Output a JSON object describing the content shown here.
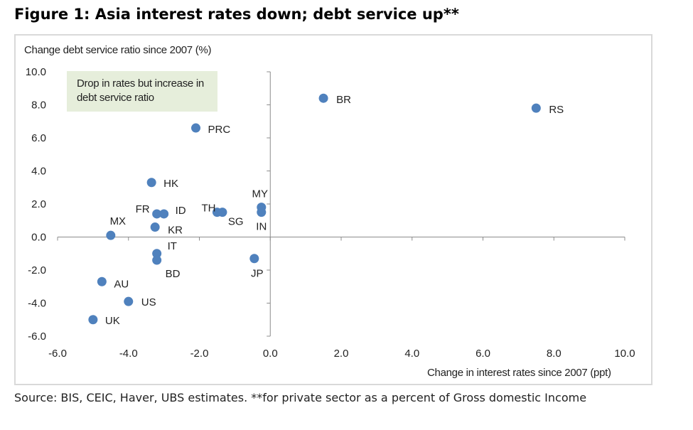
{
  "title": "Figure 1: Asia interest rates down; debt service up**",
  "source": "Source:  BIS, CEIC, Haver, UBS estimates.  **for private sector as a percent of Gross domestic Income",
  "chart_data": {
    "type": "scatter",
    "xlabel": "Change in interest rates since 2007 (ppt)",
    "ylabel": "Change debt service ratio since 2007 (%)",
    "xlim": [
      -6.0,
      10.0
    ],
    "ylim": [
      -6.0,
      10.0
    ],
    "xticks": [
      "-6.0",
      "-4.0",
      "-2.0",
      "0.0",
      "2.0",
      "4.0",
      "6.0",
      "8.0",
      "10.0"
    ],
    "yticks": [
      "10.0",
      "8.0",
      "6.0",
      "4.0",
      "2.0",
      "0.0",
      "-2.0",
      "-4.0",
      "-6.0"
    ],
    "grid": false,
    "marker_color": "#4f81bd",
    "annotation": "Drop in rates but increase in debt service ratio",
    "points": [
      {
        "label": "BR",
        "x": 1.5,
        "y": 8.4
      },
      {
        "label": "RS",
        "x": 7.5,
        "y": 7.8
      },
      {
        "label": "PRC",
        "x": -2.1,
        "y": 6.6
      },
      {
        "label": "HK",
        "x": -3.35,
        "y": 3.3
      },
      {
        "label": "MY",
        "x": -0.25,
        "y": 1.8
      },
      {
        "label": "FR",
        "x": -3.2,
        "y": 1.4
      },
      {
        "label": "ID",
        "x": -3.0,
        "y": 1.4
      },
      {
        "label": "TH",
        "x": -1.5,
        "y": 1.5
      },
      {
        "label": "SG",
        "x": -1.35,
        "y": 1.5
      },
      {
        "label": "IN",
        "x": -0.25,
        "y": 1.5
      },
      {
        "label": "KR",
        "x": -3.25,
        "y": 0.6
      },
      {
        "label": "MX",
        "x": -4.5,
        "y": 0.1
      },
      {
        "label": "IT",
        "x": -3.2,
        "y": -1.0
      },
      {
        "label": "BD",
        "x": -3.2,
        "y": -1.4
      },
      {
        "label": "JP",
        "x": -0.45,
        "y": -1.3
      },
      {
        "label": "AU",
        "x": -4.75,
        "y": -2.7
      },
      {
        "label": "US",
        "x": -4.0,
        "y": -3.9
      },
      {
        "label": "UK",
        "x": -5.0,
        "y": -5.0
      }
    ]
  }
}
